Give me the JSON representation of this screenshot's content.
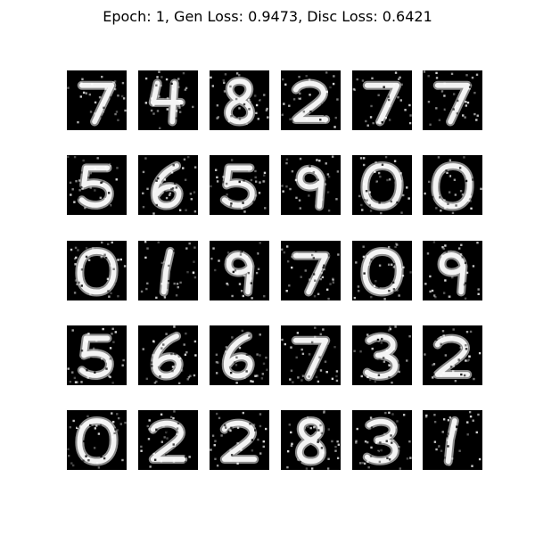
{
  "figure": {
    "title": "Epoch: 1, Gen Loss: 0.9473, Disc Loss: 0.6421",
    "background_color": "#ffffff",
    "tile_background_color": "#000000",
    "stroke_color": "#ffffff"
  },
  "samples": [
    [
      "7",
      "4",
      "8",
      "2",
      "7",
      "7"
    ],
    [
      "5",
      "6",
      "5",
      "9",
      "0",
      "0"
    ],
    [
      "0",
      "1",
      "9",
      "7",
      "0",
      "9"
    ],
    [
      "5",
      "6",
      "6",
      "7",
      "3",
      "2"
    ],
    [
      "0",
      "2",
      "2",
      "8",
      "3",
      "1"
    ]
  ]
}
